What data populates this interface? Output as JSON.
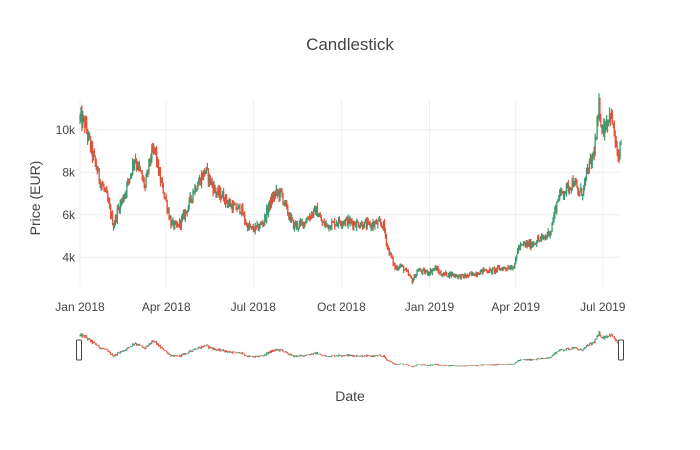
{
  "chart_data": {
    "type": "candlestick",
    "title": "Candlestick",
    "xlabel": "Date",
    "ylabel": "Price (EUR)",
    "x_range": [
      "2018-01-01",
      "2019-07-20"
    ],
    "ylim": [
      2600,
      11400
    ],
    "x_ticks": [
      {
        "date": "2018-01-01",
        "label": "Jan 2018"
      },
      {
        "date": "2018-04-01",
        "label": "Apr 2018"
      },
      {
        "date": "2018-07-01",
        "label": "Jul 2018"
      },
      {
        "date": "2018-10-01",
        "label": "Oct 2018"
      },
      {
        "date": "2019-01-01",
        "label": "Jan 2019"
      },
      {
        "date": "2019-04-01",
        "label": "Apr 2019"
      },
      {
        "date": "2019-07-01",
        "label": "Jul 2019"
      }
    ],
    "y_ticks": [
      {
        "value": 4000,
        "label": "4k"
      },
      {
        "value": 6000,
        "label": "6k"
      },
      {
        "value": 8000,
        "label": "8k"
      },
      {
        "value": 10000,
        "label": "10k"
      }
    ],
    "increasing_color": "#3d9970",
    "decreasing_color": "#e8503a",
    "grid": true,
    "range_slider": true,
    "price_path": [
      [
        "2018-01-01",
        10500
      ],
      [
        "2018-01-06",
        10300
      ],
      [
        "2018-01-12",
        9200
      ],
      [
        "2018-01-17",
        8400
      ],
      [
        "2018-01-22",
        7600
      ],
      [
        "2018-01-28",
        7000
      ],
      [
        "2018-02-05",
        5500
      ],
      [
        "2018-02-10",
        6300
      ],
      [
        "2018-02-16",
        6900
      ],
      [
        "2018-02-22",
        7800
      ],
      [
        "2018-02-27",
        8700
      ],
      [
        "2018-03-04",
        8100
      ],
      [
        "2018-03-10",
        7300
      ],
      [
        "2018-03-15",
        8600
      ],
      [
        "2018-03-20",
        9100
      ],
      [
        "2018-03-25",
        7800
      ],
      [
        "2018-03-31",
        6800
      ],
      [
        "2018-04-06",
        5600
      ],
      [
        "2018-04-12",
        5400
      ],
      [
        "2018-04-18",
        5800
      ],
      [
        "2018-04-24",
        6400
      ],
      [
        "2018-04-30",
        7200
      ],
      [
        "2018-05-06",
        7600
      ],
      [
        "2018-05-12",
        8100
      ],
      [
        "2018-05-18",
        7500
      ],
      [
        "2018-05-24",
        7000
      ],
      [
        "2018-05-30",
        6900
      ],
      [
        "2018-06-06",
        6500
      ],
      [
        "2018-06-12",
        6300
      ],
      [
        "2018-06-18",
        6300
      ],
      [
        "2018-06-24",
        5500
      ],
      [
        "2018-06-30",
        5300
      ],
      [
        "2018-07-06",
        5400
      ],
      [
        "2018-07-12",
        5700
      ],
      [
        "2018-07-18",
        6500
      ],
      [
        "2018-07-24",
        7000
      ],
      [
        "2018-07-30",
        7000
      ],
      [
        "2018-08-06",
        6100
      ],
      [
        "2018-08-12",
        5500
      ],
      [
        "2018-08-18",
        5500
      ],
      [
        "2018-08-24",
        5700
      ],
      [
        "2018-08-30",
        6000
      ],
      [
        "2018-09-05",
        6200
      ],
      [
        "2018-09-11",
        5600
      ],
      [
        "2018-09-17",
        5500
      ],
      [
        "2018-09-23",
        5600
      ],
      [
        "2018-09-29",
        5700
      ],
      [
        "2018-10-07",
        5700
      ],
      [
        "2018-10-15",
        5600
      ],
      [
        "2018-10-23",
        5550
      ],
      [
        "2018-10-31",
        5500
      ],
      [
        "2018-11-08",
        5600
      ],
      [
        "2018-11-14",
        5500
      ],
      [
        "2018-11-18",
        4500
      ],
      [
        "2018-11-22",
        4000
      ],
      [
        "2018-11-26",
        3500
      ],
      [
        "2018-12-02",
        3600
      ],
      [
        "2018-12-08",
        3300
      ],
      [
        "2018-12-14",
        2900
      ],
      [
        "2018-12-20",
        3400
      ],
      [
        "2018-12-26",
        3300
      ],
      [
        "2019-01-01",
        3300
      ],
      [
        "2019-01-07",
        3500
      ],
      [
        "2019-01-13",
        3200
      ],
      [
        "2019-01-19",
        3200
      ],
      [
        "2019-01-25",
        3200
      ],
      [
        "2019-02-01",
        3100
      ],
      [
        "2019-02-08",
        3100
      ],
      [
        "2019-02-15",
        3200
      ],
      [
        "2019-02-22",
        3300
      ],
      [
        "2019-02-28",
        3400
      ],
      [
        "2019-03-06",
        3350
      ],
      [
        "2019-03-14",
        3450
      ],
      [
        "2019-03-22",
        3500
      ],
      [
        "2019-03-31",
        3600
      ],
      [
        "2019-04-03",
        4400
      ],
      [
        "2019-04-10",
        4600
      ],
      [
        "2019-04-17",
        4600
      ],
      [
        "2019-04-24",
        4800
      ],
      [
        "2019-05-01",
        4900
      ],
      [
        "2019-05-08",
        5300
      ],
      [
        "2019-05-12",
        6200
      ],
      [
        "2019-05-16",
        6900
      ],
      [
        "2019-05-21",
        7100
      ],
      [
        "2019-05-26",
        7300
      ],
      [
        "2019-06-01",
        7600
      ],
      [
        "2019-06-05",
        7000
      ],
      [
        "2019-06-10",
        7100
      ],
      [
        "2019-06-16",
        8200
      ],
      [
        "2019-06-20",
        8600
      ],
      [
        "2019-06-24",
        9600
      ],
      [
        "2019-06-27",
        11000
      ],
      [
        "2019-07-01",
        10000
      ],
      [
        "2019-07-05",
        10400
      ],
      [
        "2019-07-09",
        10800
      ],
      [
        "2019-07-13",
        9800
      ],
      [
        "2019-07-17",
        8500
      ],
      [
        "2019-07-20",
        9400
      ]
    ]
  }
}
